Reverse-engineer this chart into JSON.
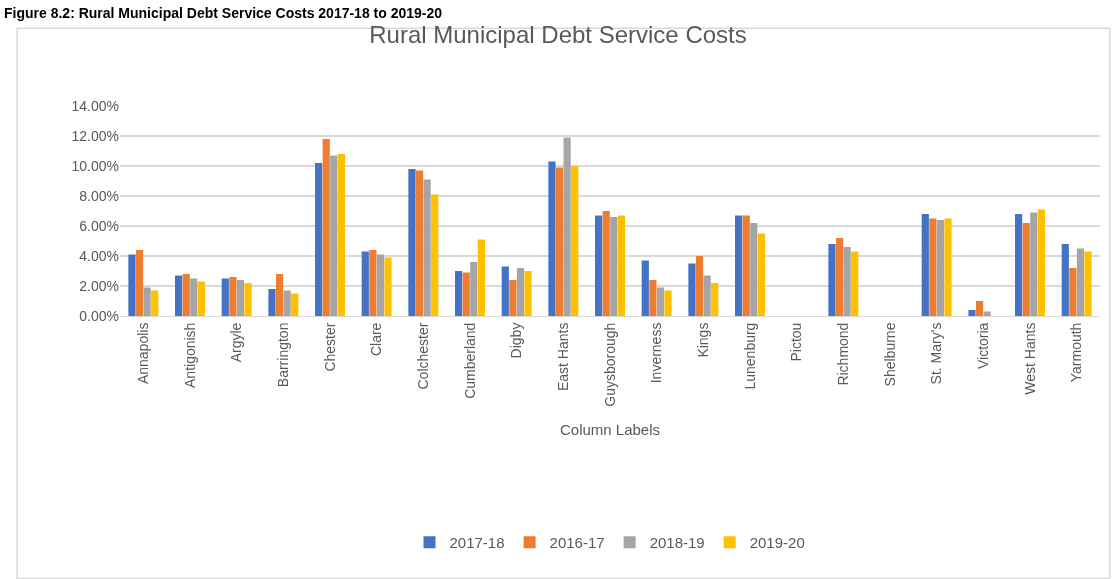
{
  "chart_data": {
    "type": "bar",
    "title": "Rural Municipal Debt Service Costs",
    "xlabel": "Column Labels",
    "annotations": [
      "Figure 8.2: Rural Municipal Debt Service Costs 2017-18 to 2019-20"
    ],
    "categories": [
      "Annapolis",
      "Antigonish",
      "Argyle",
      "Barrington",
      "Chester",
      "Clare",
      "Colchester",
      "Cumberland",
      "Digby",
      "East Hants",
      "Guysborough",
      "Inverness",
      "Kings",
      "Lunenburg",
      "Pictou",
      "Richmond",
      "Shelburne",
      "St. Mary's",
      "Victoria",
      "West Hants",
      "Yarmouth"
    ],
    "series": [
      {
        "name": "2017-18",
        "color": "#4472c4",
        "values": [
          4.1,
          2.7,
          2.5,
          1.8,
          10.2,
          4.3,
          9.8,
          3.0,
          3.3,
          10.3,
          6.7,
          3.7,
          3.5,
          6.7,
          null,
          4.8,
          null,
          6.8,
          0.4,
          6.8,
          4.8
        ]
      },
      {
        "name": "2016-17",
        "color": "#ed7d31",
        "values": [
          4.4,
          2.8,
          2.6,
          2.8,
          11.8,
          4.4,
          9.7,
          2.9,
          2.4,
          9.9,
          7.0,
          2.4,
          4.0,
          6.7,
          null,
          5.2,
          null,
          6.5,
          1.0,
          6.2,
          3.2
        ]
      },
      {
        "name": "2018-19",
        "color": "#a5a5a5",
        "values": [
          1.9,
          2.5,
          2.4,
          1.7,
          10.7,
          4.1,
          9.1,
          3.6,
          3.2,
          11.9,
          6.6,
          1.9,
          2.7,
          6.2,
          null,
          4.6,
          null,
          6.4,
          0.3,
          6.9,
          4.5
        ]
      },
      {
        "name": "2019-20",
        "color": "#ffc000",
        "values": [
          1.7,
          2.3,
          2.2,
          1.5,
          10.8,
          3.9,
          8.1,
          5.1,
          3.0,
          10.0,
          6.7,
          1.7,
          2.2,
          5.5,
          null,
          4.3,
          null,
          6.5,
          null,
          7.1,
          4.3
        ]
      }
    ],
    "ylim": [
      0,
      14
    ],
    "yticks": [
      {
        "value": 0,
        "label": "0.00%"
      },
      {
        "value": 2,
        "label": "2.00%"
      },
      {
        "value": 4,
        "label": "4.00%"
      },
      {
        "value": 6,
        "label": "6.00%"
      },
      {
        "value": 8,
        "label": "8.00%"
      },
      {
        "value": 10,
        "label": "10.00%"
      },
      {
        "value": 12,
        "label": "12.00%"
      },
      {
        "value": 14,
        "label": "14.00%"
      }
    ],
    "grid": "y",
    "legend": "bottom"
  }
}
